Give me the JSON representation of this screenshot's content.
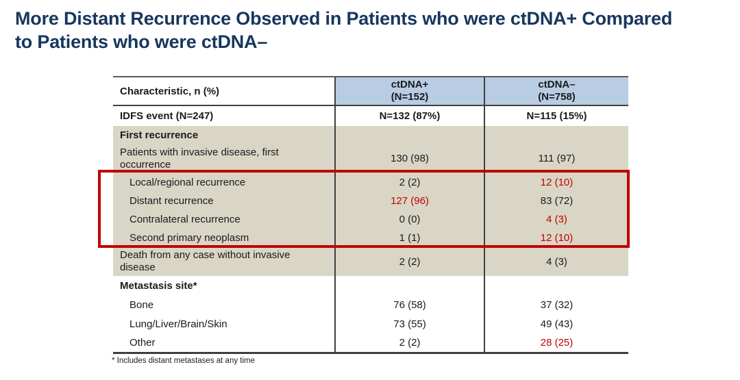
{
  "slide_title": "More Distant Recurrence Observed in Patients who were ctDNA+ Compared\nto Patients who were ctDNA–",
  "colors": {
    "title_navy": "#17365d",
    "header_blue": "#b8cce4",
    "section_tan": "#dad6c6",
    "highlight_box_red": "#c00000",
    "emphasis_text_red": "#c00000",
    "grid_line": "#3f3f3f"
  },
  "table": {
    "columns": {
      "characteristic": "Characteristic, n (%)",
      "ctdna_pos": "ctDNA+\n(N=152)",
      "ctdna_neg": "ctDNA–\n(N=758)"
    },
    "rows": [
      {
        "label": "IDFS event (N=247)",
        "ctdna_pos": "N=132 (87%)",
        "ctdna_neg": "N=115 (15%)",
        "pos_red": false,
        "neg_red": false
      },
      {
        "label": "First recurrence",
        "ctdna_pos": "",
        "ctdna_neg": "",
        "pos_red": false,
        "neg_red": false
      },
      {
        "label": "Patients with invasive disease, first occurrence",
        "ctdna_pos": "130 (98)",
        "ctdna_neg": "111 (97)",
        "pos_red": false,
        "neg_red": false
      },
      {
        "label": "Local/regional recurrence",
        "ctdna_pos": "2 (2)",
        "ctdna_neg": "12 (10)",
        "pos_red": false,
        "neg_red": true
      },
      {
        "label": "Distant recurrence",
        "ctdna_pos": "127 (96)",
        "ctdna_neg": "83 (72)",
        "pos_red": true,
        "neg_red": false
      },
      {
        "label": "Contralateral recurrence",
        "ctdna_pos": "0 (0)",
        "ctdna_neg": "4 (3)",
        "pos_red": false,
        "neg_red": true
      },
      {
        "label": "Second primary neoplasm",
        "ctdna_pos": "1 (1)",
        "ctdna_neg": "12 (10)",
        "pos_red": false,
        "neg_red": true
      },
      {
        "label": "Death from any case without invasive disease",
        "ctdna_pos": "2 (2)",
        "ctdna_neg": "4 (3)",
        "pos_red": false,
        "neg_red": false
      },
      {
        "label": "Metastasis site*",
        "ctdna_pos": "",
        "ctdna_neg": "",
        "pos_red": false,
        "neg_red": false
      },
      {
        "label": "Bone",
        "ctdna_pos": "76 (58)",
        "ctdna_neg": "37 (32)",
        "pos_red": false,
        "neg_red": false
      },
      {
        "label": "Lung/Liver/Brain/Skin",
        "ctdna_pos": "73 (55)",
        "ctdna_neg": "49 (43)",
        "pos_red": false,
        "neg_red": false
      },
      {
        "label": "Other",
        "ctdna_pos": "2 (2)",
        "ctdna_neg": "28 (25)",
        "pos_red": false,
        "neg_red": true
      }
    ],
    "footnote": "* Includes distant metastases at any time"
  }
}
